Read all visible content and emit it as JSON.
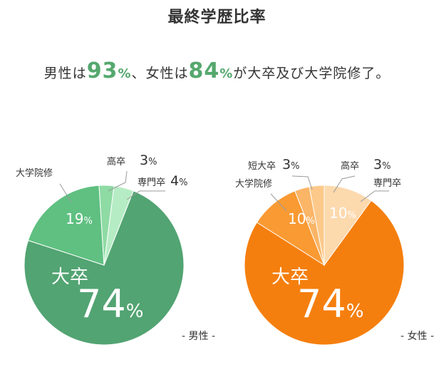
{
  "page": {
    "title": "最終学歴比率",
    "summary": {
      "prefix": "男性は",
      "male_pct_num": "93",
      "pct_unit": "%",
      "middle": "、女性は",
      "female_pct_num": "84",
      "suffix": "が大卒及び大学院修了。"
    }
  },
  "chart_data": [
    {
      "type": "pie",
      "caption": "- 男性 -",
      "slices": [
        {
          "label": "大卒",
          "value": 74,
          "value_text": "74",
          "unit": "%",
          "color": "#52a472"
        },
        {
          "label": "大学院修",
          "value": 19,
          "value_text": "19",
          "unit": "%",
          "color": "#5fc081"
        },
        {
          "label": "高卒",
          "value": 3,
          "value_text": "3",
          "unit": "%",
          "color": "#8fdba4"
        },
        {
          "label": "専門卒",
          "value": 4,
          "value_text": "4",
          "unit": "%",
          "color": "#b6ecc4"
        }
      ]
    },
    {
      "type": "pie",
      "caption": "- 女性 -",
      "slices": [
        {
          "label": "大卒",
          "value": 74,
          "value_text": "74",
          "unit": "%",
          "color": "#f57f0e"
        },
        {
          "label": "大学院修",
          "value": 10,
          "value_text": "10",
          "unit": "%",
          "color": "#f99a33"
        },
        {
          "label": "短大卒",
          "value": 3,
          "value_text": "3",
          "unit": "%",
          "color": "#fab567"
        },
        {
          "label": "高卒",
          "value": 3,
          "value_text": "3",
          "unit": "%",
          "color": "#fcc98a"
        },
        {
          "label": "専門卒",
          "value": 10,
          "value_text": "10",
          "unit": "%",
          "color": "#fdd9ae"
        }
      ]
    }
  ]
}
